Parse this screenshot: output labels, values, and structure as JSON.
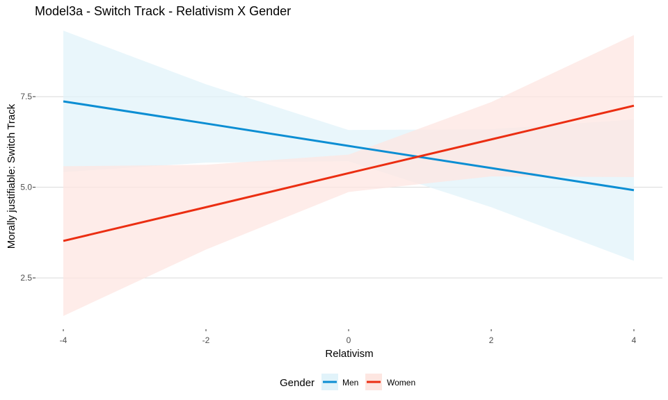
{
  "chart_data": {
    "type": "line",
    "title": "Model3a - Switch Track - Relativism X Gender",
    "xlabel": "Relativism",
    "ylabel": "Morally justifiable: Switch Track",
    "xlim": [
      -4,
      4
    ],
    "ylim": [
      1.2,
      9.4
    ],
    "x_ticks": [
      -4,
      -2,
      0,
      2,
      4
    ],
    "x_tick_labels": [
      "-4",
      "-2",
      "0",
      "2",
      "4"
    ],
    "y_ticks": [
      2.5,
      5.0,
      7.5
    ],
    "y_tick_labels": [
      "2.5",
      "5.0",
      "7.5"
    ],
    "grid": "horizontal major",
    "legend": {
      "title": "Gender",
      "position": "bottom"
    },
    "series": [
      {
        "name": "Men",
        "color": "#0C8ED3",
        "ribbon_color": "#E1F3FA",
        "x": [
          -4,
          -2,
          0,
          2,
          4
        ],
        "y": [
          7.37,
          6.76,
          6.14,
          5.53,
          4.92
        ],
        "lower": [
          5.42,
          5.68,
          5.72,
          4.45,
          2.97
        ],
        "upper": [
          9.32,
          7.84,
          6.58,
          6.6,
          6.87
        ]
      },
      {
        "name": "Women",
        "color": "#EB2E12",
        "ribbon_color": "#FDE6E1",
        "x": [
          -4,
          -2,
          0,
          2,
          4
        ],
        "y": [
          3.52,
          4.45,
          5.39,
          6.32,
          7.25
        ],
        "lower": [
          1.45,
          3.28,
          4.87,
          5.3,
          5.28
        ],
        "upper": [
          5.58,
          5.62,
          5.9,
          7.35,
          9.2
        ]
      }
    ]
  }
}
